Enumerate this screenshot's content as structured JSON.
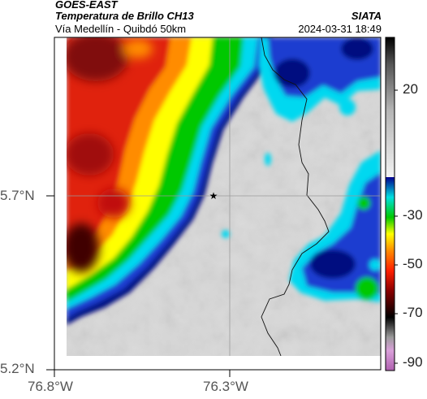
{
  "header": {
    "satellite": "GOES-EAST",
    "product": "Temperatura de Brillo CH13",
    "organization": "SIATA",
    "region": "Vía Medellín - Quibdó 50km",
    "timestamp": "2024-03-31 18:49"
  },
  "axes": {
    "lat_ticks": [
      "5.7°N",
      "5.2°N"
    ],
    "lon_ticks": [
      "76.8°W",
      "76.3°W"
    ]
  },
  "colorbar": {
    "labels": [
      "20",
      "-30",
      "-50",
      "-70",
      "-90"
    ],
    "stops": [
      "#b060b0",
      "#d9a0d9",
      "#9a9a9a",
      "#000000",
      "#8b0000",
      "#ff2000",
      "#ff8c00",
      "#ffff00",
      "#00c800",
      "#00e0e0",
      "#000090"
    ],
    "upper_ramp": [
      "#f2f2f2",
      "#b5b5b5",
      "#555555",
      "#000000"
    ]
  },
  "map": {
    "marker_icon": "star-icon",
    "colors": {
      "warm_surface": "#d8d8d8",
      "cloud_red": "#e02010",
      "cloud_dark_red": "#801010",
      "cloud_orange": "#ff8c00",
      "cloud_yellow": "#ffff00",
      "cloud_green": "#00c800",
      "cloud_cyan": "#00d8f0",
      "cloud_blue": "#1a3cd0",
      "cloud_navy": "#000a80"
    }
  }
}
